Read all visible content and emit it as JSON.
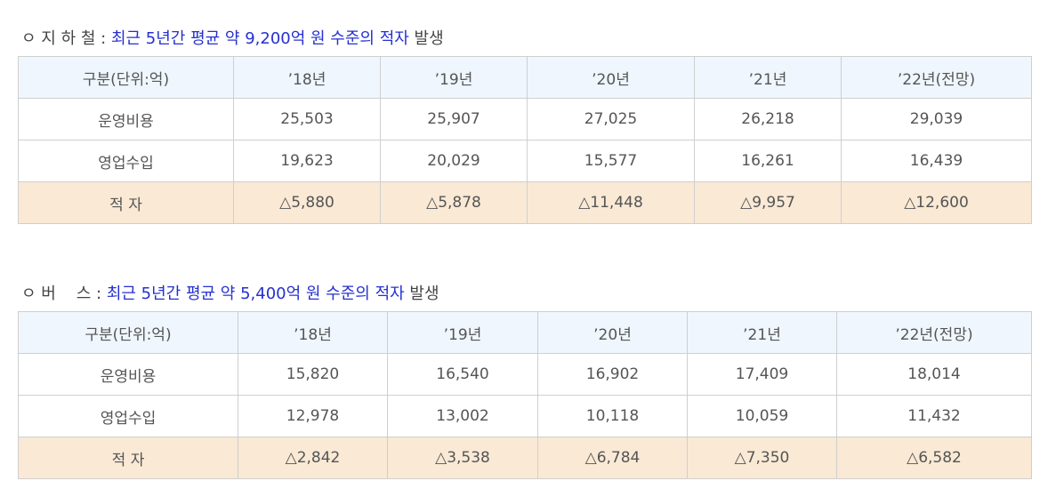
{
  "sections": [
    {
      "heading": {
        "prefix": "ㅇ 지 하 철 :",
        "highlight": "최근 5년간 평균 약 9,200억 원 수준의 적자",
        "suffix": "발생"
      },
      "table": {
        "header": [
          "구분(단위:억)",
          "’18년",
          "’19년",
          "’20년",
          "’21년",
          "’22년(전망)"
        ],
        "rows": [
          [
            "운영비용",
            "25,503",
            "25,907",
            "27,025",
            "26,218",
            "29,039"
          ],
          [
            "영업수입",
            "19,623",
            "20,029",
            "15,577",
            "16,261",
            "16,439"
          ],
          [
            "적 자",
            "△5,880",
            "△5,878",
            "△11,448",
            "△9,957",
            "△12,600"
          ]
        ]
      }
    },
    {
      "heading": {
        "prefix": "ㅇ 버    스 :",
        "highlight": "최근 5년간 평균 약 5,400억 원 수준의 적자",
        "suffix": "발생"
      },
      "table": {
        "header": [
          "구분(단위:억)",
          "’18년",
          "’19년",
          "’20년",
          "’21년",
          "’22년(전망)"
        ],
        "rows": [
          [
            "운영비용",
            "15,820",
            "16,540",
            "16,902",
            "17,409",
            "18,014"
          ],
          [
            "영업수입",
            "12,978",
            "13,002",
            "10,118",
            "10,059",
            "11,432"
          ],
          [
            "적 자",
            "△2,842",
            "△3,538",
            "△6,784",
            "△7,350",
            "△6,582"
          ]
        ]
      }
    }
  ]
}
